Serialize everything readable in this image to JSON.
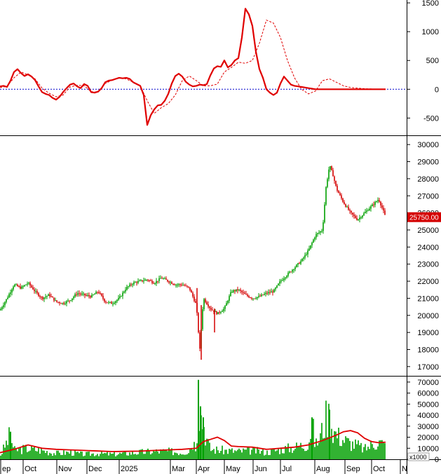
{
  "colors": {
    "up": "#00a000",
    "down": "#d40000",
    "macd_line": "#e00000",
    "signal_line": "#e00000",
    "zero_line": "#0000cc",
    "volume_bar": "#00a000",
    "volume_ma": "#e00000",
    "price_tag": "#d40000",
    "frame": "#000000"
  },
  "x_axis": {
    "labels": [
      "ep",
      "Oct",
      "Nov",
      "Dec",
      "2025",
      "Mar",
      "Apr",
      "May",
      "Jun",
      "Jul",
      "Aug",
      "Sep",
      "Oct",
      "N"
    ]
  },
  "chart_data": [
    {
      "type": "line",
      "panel": "oscillator",
      "ylim": [
        -800,
        1550
      ],
      "yticks": [
        "1500",
        "1000",
        "500",
        "0",
        "-500"
      ],
      "ytick_values": [
        1500,
        1000,
        500,
        0,
        -500
      ],
      "reference_line": 0,
      "grid": false,
      "series": [
        {
          "style": "solid-thick",
          "x": [
            0,
            5,
            10,
            15,
            20,
            25,
            30,
            35,
            40,
            45,
            50,
            55,
            60,
            65,
            70,
            75,
            80,
            85,
            90,
            95,
            100,
            105,
            110,
            115,
            120,
            125,
            130,
            135,
            140,
            145,
            150,
            155,
            160,
            165,
            170,
            175,
            180,
            185,
            190,
            195,
            200,
            205,
            210,
            215,
            220,
            225,
            230,
            235,
            240,
            245,
            250,
            255,
            260,
            265,
            270,
            275,
            280,
            285,
            290,
            295,
            300,
            305,
            310,
            315,
            320,
            325,
            330,
            335,
            340,
            345,
            350,
            355,
            360,
            365,
            370,
            375,
            380,
            385,
            390,
            395,
            400,
            405,
            410,
            415,
            420,
            425,
            430,
            435,
            440,
            445,
            450,
            455,
            460,
            465,
            470,
            475,
            480,
            485,
            490,
            495,
            500,
            505,
            510,
            515,
            520,
            525,
            530,
            535,
            540,
            545,
            550
          ],
          "values": [
            50,
            60,
            40,
            150,
            300,
            350,
            280,
            230,
            260,
            220,
            160,
            50,
            -50,
            -80,
            -100,
            -150,
            -180,
            -130,
            -50,
            20,
            80,
            100,
            50,
            20,
            90,
            60,
            -50,
            -60,
            -40,
            20,
            120,
            150,
            160,
            180,
            200,
            190,
            200,
            180,
            120,
            90,
            60,
            -100,
            -620,
            -450,
            -350,
            -280,
            -270,
            -200,
            -80,
            100,
            230,
            270,
            220,
            130,
            80,
            50,
            60,
            80,
            70,
            90,
            240,
            360,
            400,
            390,
            500,
            380,
            420,
            500,
            540,
            900,
            1400,
            1300,
            1100,
            650,
            350,
            200,
            0,
            -60,
            -100,
            -60,
            100,
            220,
            150,
            80,
            60,
            50,
            40,
            30,
            20,
            10,
            0,
            0,
            0,
            0,
            0,
            0,
            0,
            0,
            0,
            0,
            0,
            0,
            0,
            0,
            0,
            0,
            0,
            0,
            0,
            0,
            0
          ],
          "visible_until_x": 550
        },
        {
          "style": "dashed-thin",
          "x": [
            0,
            10,
            20,
            30,
            40,
            50,
            60,
            70,
            80,
            90,
            100,
            110,
            120,
            130,
            140,
            150,
            160,
            170,
            180,
            190,
            200,
            210,
            220,
            230,
            240,
            250,
            260,
            270,
            280,
            290,
            300,
            310,
            320,
            330,
            340,
            350,
            360,
            370,
            380,
            390,
            400,
            410,
            420,
            430,
            440,
            450,
            460,
            470,
            480,
            490,
            500,
            510,
            520,
            530,
            540,
            550
          ],
          "values": [
            30,
            50,
            200,
            300,
            250,
            180,
            20,
            -70,
            -130,
            -100,
            40,
            70,
            60,
            -40,
            -50,
            100,
            160,
            200,
            180,
            120,
            60,
            -200,
            -420,
            -320,
            -250,
            -100,
            150,
            230,
            150,
            60,
            60,
            90,
            300,
            380,
            470,
            450,
            500,
            800,
            1200,
            1150,
            900,
            500,
            200,
            0,
            -80,
            -30,
            150,
            180,
            120,
            60,
            30,
            20,
            10,
            5,
            0,
            0
          ],
          "visible_until_x": 550
        }
      ]
    },
    {
      "type": "candlestick",
      "panel": "price",
      "ylim": [
        16500,
        30500
      ],
      "yticks": [
        "30000",
        "29000",
        "28000",
        "27000",
        "26000",
        "25000",
        "24000",
        "23000",
        "22000",
        "21000",
        "20000",
        "19000",
        "18000",
        "17000"
      ],
      "ytick_values": [
        30000,
        29000,
        28000,
        27000,
        26000,
        25000,
        24000,
        23000,
        22000,
        21000,
        20000,
        19000,
        18000,
        17000
      ],
      "last_price": "25750.00",
      "last_price_value": 25750,
      "grid": false,
      "close_path": {
        "x": [
          0,
          10,
          20,
          30,
          40,
          50,
          60,
          70,
          80,
          90,
          100,
          110,
          120,
          130,
          140,
          150,
          160,
          170,
          180,
          190,
          200,
          210,
          220,
          230,
          240,
          250,
          260,
          270,
          280,
          285,
          290,
          300,
          310,
          320,
          330,
          340,
          350,
          360,
          370,
          380,
          390,
          400,
          410,
          420,
          430,
          440,
          450,
          460,
          465,
          470,
          475,
          480,
          490,
          500,
          510,
          520,
          530,
          540,
          545,
          550
        ],
        "values": [
          20300,
          21000,
          21800,
          21600,
          21900,
          21400,
          21000,
          21200,
          20800,
          20700,
          20900,
          21300,
          21200,
          21100,
          21400,
          20800,
          20700,
          21000,
          21600,
          21900,
          22000,
          22100,
          21900,
          22200,
          22000,
          21800,
          21800,
          21600,
          20600,
          18000,
          21000,
          20400,
          20100,
          20400,
          21400,
          21500,
          21200,
          21000,
          21100,
          21300,
          21400,
          22000,
          22400,
          22800,
          23200,
          23800,
          24700,
          25000,
          27500,
          28800,
          28200,
          27400,
          26600,
          26000,
          25600,
          26000,
          26400,
          26800,
          26300,
          25750
        ]
      }
    },
    {
      "type": "bar",
      "panel": "volume",
      "unit": "x1000",
      "ylim": [
        0,
        75000
      ],
      "yticks": [
        "70000",
        "60000",
        "50000",
        "40000",
        "30000",
        "20000",
        "10000",
        "0"
      ],
      "ytick_values": [
        70000,
        60000,
        50000,
        40000,
        30000,
        20000,
        10000,
        0
      ],
      "grid": false,
      "volume_profile": {
        "x": [
          0,
          15,
          20,
          40,
          60,
          80,
          100,
          120,
          140,
          160,
          180,
          200,
          220,
          240,
          260,
          270,
          275,
          280,
          283,
          286,
          290,
          295,
          300,
          320,
          340,
          360,
          380,
          400,
          420,
          440,
          445,
          450,
          455,
          460,
          465,
          470,
          475,
          480,
          490,
          500,
          510,
          520,
          530,
          540,
          550
        ],
        "values": [
          3000,
          25000,
          9000,
          11000,
          9000,
          6000,
          7000,
          5000,
          6000,
          5000,
          6000,
          7000,
          8000,
          8000,
          7000,
          9000,
          18000,
          12000,
          72000,
          45000,
          38000,
          20000,
          10000,
          9000,
          8000,
          9000,
          7000,
          10000,
          12000,
          16000,
          38000,
          14000,
          20000,
          30000,
          42000,
          45000,
          30000,
          25000,
          20000,
          16000,
          14000,
          10000,
          15000,
          18000,
          14000
        ]
      },
      "ma_line": {
        "x": [
          0,
          20,
          40,
          60,
          80,
          100,
          120,
          140,
          160,
          180,
          200,
          220,
          240,
          260,
          280,
          290,
          300,
          310,
          320,
          330,
          340,
          360,
          380,
          400,
          420,
          440,
          460,
          480,
          490,
          500,
          510,
          520,
          530,
          540,
          550
        ],
        "values": [
          6000,
          9000,
          13000,
          10000,
          9000,
          8500,
          8000,
          7500,
          7000,
          7200,
          7400,
          8000,
          8500,
          9000,
          10000,
          16000,
          18000,
          20000,
          17000,
          12000,
          11500,
          11000,
          9000,
          10000,
          11000,
          13000,
          17000,
          22000,
          25000,
          26000,
          24000,
          19000,
          16000,
          15000,
          15500
        ]
      }
    }
  ]
}
